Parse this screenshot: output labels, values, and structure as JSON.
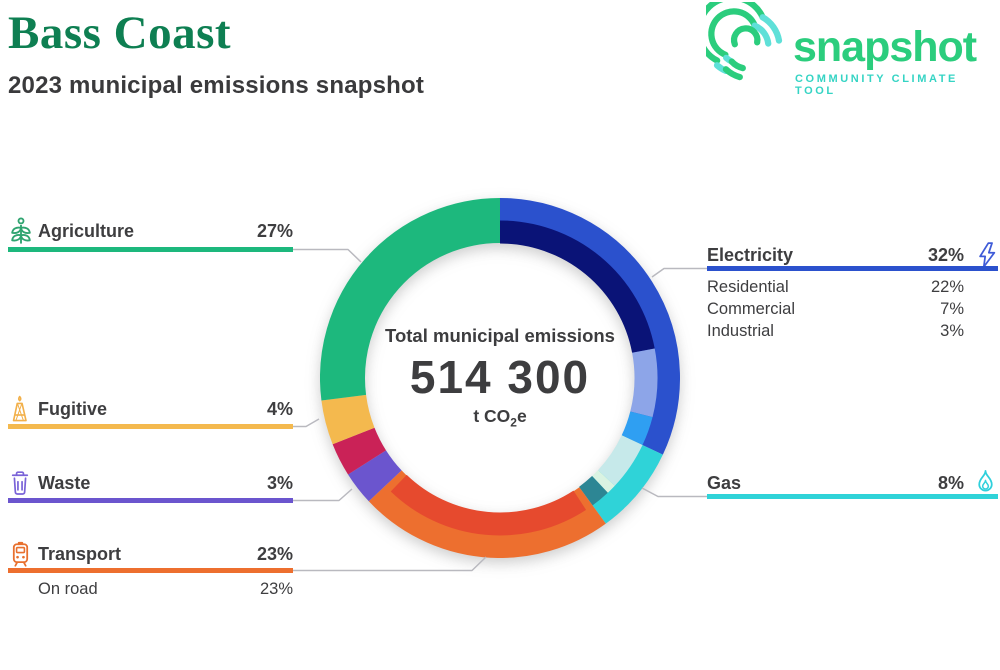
{
  "header": {
    "title": "Bass Coast",
    "subtitle": "2023 municipal emissions snapshot",
    "title_color": "#0e7f52"
  },
  "logo": {
    "wordmark": "snapshot",
    "tagline": "COMMUNITY CLIMATE TOOL",
    "green": "#2bcd7d",
    "teal": "#35d4c4"
  },
  "center": {
    "label": "Total municipal emissions",
    "value": "514 300",
    "unit_main": "t CO",
    "unit_sub": "2",
    "unit_end": "e"
  },
  "chart_data": {
    "type": "donut",
    "title": "Total municipal emissions",
    "total_label": "514 300",
    "unit": "t CO2e",
    "start": "top, clockwise",
    "segments": [
      {
        "label": "Electricity",
        "pct": 32,
        "color": "#2b51cd",
        "subsegments": [
          {
            "label": "Residential",
            "pct": 22,
            "color": "#0a1377"
          },
          {
            "label": "Commercial",
            "pct": 7,
            "color": "#8da5e8"
          },
          {
            "label": "Industrial",
            "pct": 3,
            "color": "#2f9ff2"
          }
        ]
      },
      {
        "label": "Gas",
        "pct": 8,
        "color": "#2fd3d8",
        "subsegments": [
          {
            "label": "",
            "pct": 5,
            "color": "#c6e9ea"
          },
          {
            "label": "",
            "pct": 1,
            "color": "#daf3e2"
          },
          {
            "label": "",
            "pct": 2,
            "color": "#2d8694"
          }
        ]
      },
      {
        "label": "Transport",
        "pct": 23,
        "color": "#ed6f2f",
        "subsegments": [
          {
            "label": "On road",
            "pct": 23,
            "color": "#e64a2e"
          }
        ]
      },
      {
        "label": "Waste",
        "pct": 3,
        "color": "#6b55ce"
      },
      {
        "label": "",
        "pct": 3,
        "color": "#ca2257"
      },
      {
        "label": "Fugitive",
        "pct": 4,
        "color": "#f4b94e"
      },
      {
        "label": "Agriculture",
        "pct": 27,
        "color": "#1db87d"
      }
    ]
  },
  "legend_left": [
    {
      "label": "Agriculture",
      "pct": "27%",
      "color": "#1db87d",
      "icon_color": "#2fa470"
    },
    {
      "label": "Fugitive",
      "pct": "4%",
      "color": "#f4b94e",
      "icon_color": "#f2b04a"
    },
    {
      "label": "Waste",
      "pct": "3%",
      "color": "#6b55ce",
      "icon_color": "#7a63d8"
    },
    {
      "label": "Transport",
      "pct": "23%",
      "color": "#ed6f2f",
      "icon_color": "#e8702e",
      "sub": [
        {
          "label": "On road",
          "pct": "23%"
        }
      ]
    }
  ],
  "legend_right": [
    {
      "label": "Electricity",
      "pct": "32%",
      "color": "#2b51cd",
      "icon_color": "#3f5bd8",
      "sub": [
        {
          "label": "Residential",
          "pct": "22%"
        },
        {
          "label": "Commercial",
          "pct": "7%"
        },
        {
          "label": "Industrial",
          "pct": "3%"
        }
      ]
    },
    {
      "label": "Gas",
      "pct": "8%",
      "color": "#2fd3d8",
      "icon_color": "#2fd0dc",
      "sub": []
    }
  ]
}
